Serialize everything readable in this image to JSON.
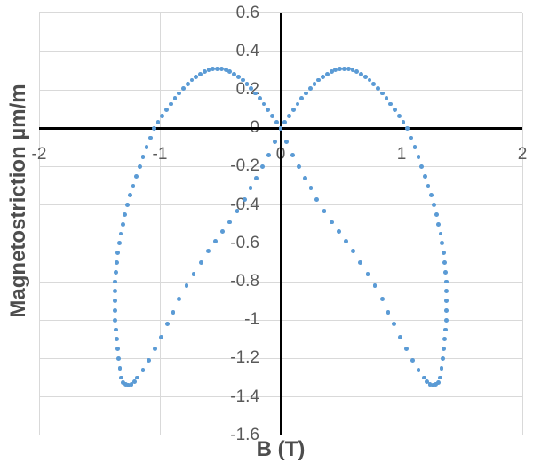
{
  "chart_data": {
    "type": "scatter",
    "title": "",
    "xlabel": "B (T)",
    "ylabel": "Magnetostriction µm/m",
    "xlim": [
      -2,
      2
    ],
    "ylim": [
      -1.6,
      0.6
    ],
    "x_ticks": {
      "values": [
        -2,
        -1,
        0,
        1,
        2
      ],
      "labels": [
        "-2",
        "-1",
        "0",
        "1",
        "2"
      ]
    },
    "y_ticks": {
      "values": [
        0.6,
        0.4,
        0.2,
        0,
        -0.2,
        -0.4,
        -0.6,
        -0.8,
        -1,
        -1.2,
        -1.4,
        -1.6
      ],
      "labels": [
        "0.6",
        "0.4",
        "0.2",
        "0",
        "-0.2",
        "-0.4",
        "-0.6",
        "-0.8",
        "-1",
        "-1.2",
        "-1.4",
        "-1.6"
      ]
    },
    "grid": true,
    "legend": false,
    "point_color": "#5b9bd5",
    "axis_color": "#000000",
    "gridline_color": "#d9d9d9",
    "tick_label_color": "#595959",
    "axis_title_color": "#4d4d4d",
    "series": [
      {
        "name": "butterfly-loop-right-lobe",
        "points": [
          [
            0,
            0
          ],
          [
            0.035,
            0.033
          ],
          [
            0.07,
            0.064
          ],
          [
            0.105,
            0.096
          ],
          [
            0.14,
            0.126
          ],
          [
            0.175,
            0.155
          ],
          [
            0.21,
            0.182
          ],
          [
            0.245,
            0.207
          ],
          [
            0.28,
            0.23
          ],
          [
            0.315,
            0.251
          ],
          [
            0.35,
            0.268
          ],
          [
            0.385,
            0.283
          ],
          [
            0.42,
            0.295
          ],
          [
            0.455,
            0.303
          ],
          [
            0.49,
            0.308
          ],
          [
            0.525,
            0.31
          ],
          [
            0.56,
            0.308
          ],
          [
            0.595,
            0.303
          ],
          [
            0.63,
            0.295
          ],
          [
            0.665,
            0.283
          ],
          [
            0.7,
            0.268
          ],
          [
            0.735,
            0.251
          ],
          [
            0.77,
            0.23
          ],
          [
            0.805,
            0.207
          ],
          [
            0.84,
            0.182
          ],
          [
            0.875,
            0.155
          ],
          [
            0.91,
            0.126
          ],
          [
            0.945,
            0.096
          ],
          [
            0.98,
            0.064
          ],
          [
            1.015,
            0.033
          ],
          [
            1.05,
            0
          ],
          [
            1.08,
            -0.05
          ],
          [
            1.11,
            -0.1
          ],
          [
            1.139,
            -0.15
          ],
          [
            1.167,
            -0.2
          ],
          [
            1.195,
            -0.25
          ],
          [
            1.22,
            -0.3
          ],
          [
            1.245,
            -0.35
          ],
          [
            1.267,
            -0.4
          ],
          [
            1.288,
            -0.45
          ],
          [
            1.307,
            -0.5
          ],
          [
            1.323,
            -0.55
          ],
          [
            1.337,
            -0.6
          ],
          [
            1.349,
            -0.65
          ],
          [
            1.359,
            -0.7
          ],
          [
            1.366,
            -0.75
          ],
          [
            1.371,
            -0.8
          ],
          [
            1.373,
            -0.85
          ],
          [
            1.374,
            -0.9
          ],
          [
            1.372,
            -0.95
          ],
          [
            1.369,
            -1
          ],
          [
            1.364,
            -1.05
          ],
          [
            1.357,
            -1.1
          ],
          [
            1.349,
            -1.15
          ],
          [
            1.34,
            -1.2
          ],
          [
            1.331,
            -1.25
          ],
          [
            1.321,
            -1.3
          ],
          [
            1.308,
            -1.325
          ],
          [
            1.285,
            -1.335
          ],
          [
            1.26,
            -1.34
          ],
          [
            1.235,
            -1.335
          ],
          [
            1.21,
            -1.32
          ],
          [
            1.19,
            -1.3
          ],
          [
            1.14,
            -1.26
          ],
          [
            1.09,
            -1.21
          ],
          [
            1.04,
            -1.15
          ],
          [
            0.99,
            -1.09
          ],
          [
            0.94,
            -1.02
          ],
          [
            0.89,
            -0.96
          ],
          [
            0.84,
            -0.89
          ],
          [
            0.78,
            -0.82
          ],
          [
            0.72,
            -0.76
          ],
          [
            0.66,
            -0.7
          ],
          [
            0.6,
            -0.64
          ],
          [
            0.54,
            -0.59
          ],
          [
            0.48,
            -0.54
          ],
          [
            0.42,
            -0.49
          ],
          [
            0.36,
            -0.43
          ],
          [
            0.3,
            -0.37
          ],
          [
            0.25,
            -0.31
          ],
          [
            0.2,
            -0.26
          ],
          [
            0.15,
            -0.2
          ],
          [
            0.1,
            -0.14
          ],
          [
            0.05,
            -0.07
          ]
        ]
      },
      {
        "name": "butterfly-loop-left-lobe",
        "points": [
          [
            0,
            0
          ],
          [
            -0.035,
            0.033
          ],
          [
            -0.07,
            0.064
          ],
          [
            -0.105,
            0.096
          ],
          [
            -0.14,
            0.126
          ],
          [
            -0.175,
            0.155
          ],
          [
            -0.21,
            0.182
          ],
          [
            -0.245,
            0.207
          ],
          [
            -0.28,
            0.23
          ],
          [
            -0.315,
            0.251
          ],
          [
            -0.35,
            0.268
          ],
          [
            -0.385,
            0.283
          ],
          [
            -0.42,
            0.295
          ],
          [
            -0.455,
            0.303
          ],
          [
            -0.49,
            0.308
          ],
          [
            -0.525,
            0.31
          ],
          [
            -0.56,
            0.308
          ],
          [
            -0.595,
            0.303
          ],
          [
            -0.63,
            0.295
          ],
          [
            -0.665,
            0.283
          ],
          [
            -0.7,
            0.268
          ],
          [
            -0.735,
            0.251
          ],
          [
            -0.77,
            0.23
          ],
          [
            -0.805,
            0.207
          ],
          [
            -0.84,
            0.182
          ],
          [
            -0.875,
            0.155
          ],
          [
            -0.91,
            0.126
          ],
          [
            -0.945,
            0.096
          ],
          [
            -0.98,
            0.064
          ],
          [
            -1.015,
            0.033
          ],
          [
            -1.05,
            0
          ],
          [
            -1.08,
            -0.05
          ],
          [
            -1.11,
            -0.1
          ],
          [
            -1.139,
            -0.15
          ],
          [
            -1.167,
            -0.2
          ],
          [
            -1.195,
            -0.25
          ],
          [
            -1.22,
            -0.3
          ],
          [
            -1.245,
            -0.35
          ],
          [
            -1.267,
            -0.4
          ],
          [
            -1.288,
            -0.45
          ],
          [
            -1.307,
            -0.5
          ],
          [
            -1.323,
            -0.55
          ],
          [
            -1.337,
            -0.6
          ],
          [
            -1.349,
            -0.65
          ],
          [
            -1.359,
            -0.7
          ],
          [
            -1.366,
            -0.75
          ],
          [
            -1.371,
            -0.8
          ],
          [
            -1.373,
            -0.85
          ],
          [
            -1.374,
            -0.9
          ],
          [
            -1.372,
            -0.95
          ],
          [
            -1.369,
            -1
          ],
          [
            -1.364,
            -1.05
          ],
          [
            -1.357,
            -1.1
          ],
          [
            -1.349,
            -1.15
          ],
          [
            -1.34,
            -1.2
          ],
          [
            -1.331,
            -1.25
          ],
          [
            -1.321,
            -1.3
          ],
          [
            -1.308,
            -1.325
          ],
          [
            -1.285,
            -1.335
          ],
          [
            -1.26,
            -1.34
          ],
          [
            -1.235,
            -1.335
          ],
          [
            -1.21,
            -1.32
          ],
          [
            -1.19,
            -1.3
          ],
          [
            -1.14,
            -1.26
          ],
          [
            -1.09,
            -1.21
          ],
          [
            -1.04,
            -1.15
          ],
          [
            -0.99,
            -1.09
          ],
          [
            -0.94,
            -1.02
          ],
          [
            -0.89,
            -0.96
          ],
          [
            -0.84,
            -0.89
          ],
          [
            -0.78,
            -0.82
          ],
          [
            -0.72,
            -0.76
          ],
          [
            -0.66,
            -0.7
          ],
          [
            -0.6,
            -0.64
          ],
          [
            -0.54,
            -0.59
          ],
          [
            -0.48,
            -0.54
          ],
          [
            -0.42,
            -0.49
          ],
          [
            -0.36,
            -0.43
          ],
          [
            -0.3,
            -0.37
          ],
          [
            -0.25,
            -0.31
          ],
          [
            -0.2,
            -0.26
          ],
          [
            -0.15,
            -0.2
          ],
          [
            -0.1,
            -0.14
          ],
          [
            -0.05,
            -0.07
          ]
        ]
      }
    ]
  }
}
